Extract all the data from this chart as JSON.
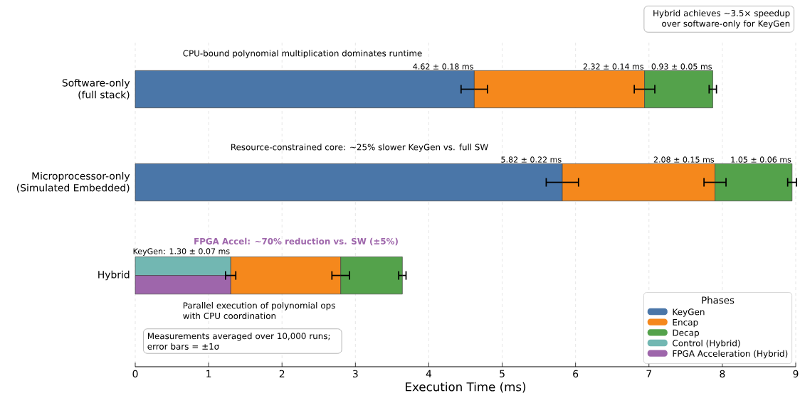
{
  "chart_data": {
    "type": "bar",
    "orientation": "horizontal",
    "categories": [
      "Software-only (full stack)",
      "Microprocessor-only (Simulated Embedded)",
      "Hybrid"
    ],
    "series": [
      {
        "name": "KeyGen",
        "color": "#4a76a8",
        "values": [
          4.62,
          5.82,
          null
        ],
        "base": [
          0,
          0,
          null
        ],
        "errors": [
          0.18,
          0.22,
          null
        ],
        "value_labels": [
          "4.62 ± 0.18 ms",
          "5.82 ± 0.22 ms",
          null
        ]
      },
      {
        "name": "Encap",
        "color": "#f5881c",
        "values": [
          2.32,
          2.08,
          1.5
        ],
        "base": [
          4.62,
          5.82,
          1.3
        ],
        "errors": [
          0.14,
          0.15,
          0.12
        ],
        "value_labels": [
          "2.32 ± 0.14 ms",
          "2.08 ± 0.15 ms",
          null
        ]
      },
      {
        "name": "Decap",
        "color": "#54a24b",
        "values": [
          0.93,
          1.05,
          0.84
        ],
        "base": [
          6.94,
          7.9,
          2.8
        ],
        "errors": [
          0.05,
          0.06,
          0.05
        ],
        "value_labels": [
          "0.93 ± 0.05 ms",
          "1.05 ± 0.06 ms",
          null
        ]
      },
      {
        "name": "Control (Hybrid)",
        "color": "#72b7b2",
        "values": [
          null,
          null,
          1.3
        ],
        "base": [
          null,
          null,
          0
        ],
        "errors": [
          null,
          null,
          0.07
        ],
        "value_labels": [
          null,
          null,
          "KeyGen: 1.30 ± 0.07 ms"
        ]
      },
      {
        "name": "FPGA Acceleration (Hybrid)",
        "color": "#9e66ab",
        "values": [
          null,
          null,
          1.3
        ],
        "base": [
          null,
          null,
          0
        ]
      }
    ],
    "xlabel": "Execution Time (ms)",
    "xlim": [
      0,
      9
    ],
    "xticks": [
      0,
      1,
      2,
      3,
      4,
      5,
      6,
      7,
      8,
      9
    ],
    "grid": "x",
    "legend": "bottom right",
    "legend_title": "Phases",
    "annotations": [
      "Hybrid achieves ~3.5× speedup over software-only for KeyGen",
      "CPU-bound polynomial multiplication dominates runtime",
      "Resource-constrained core: ~25% slower KeyGen vs. full SW",
      "FPGA Accel: ~70% reduction vs. SW (±5%)",
      "Parallel execution of polynomial ops with CPU coordination",
      "Measurements averaged over 10,000 runs; error bars = ±1σ"
    ]
  }
}
